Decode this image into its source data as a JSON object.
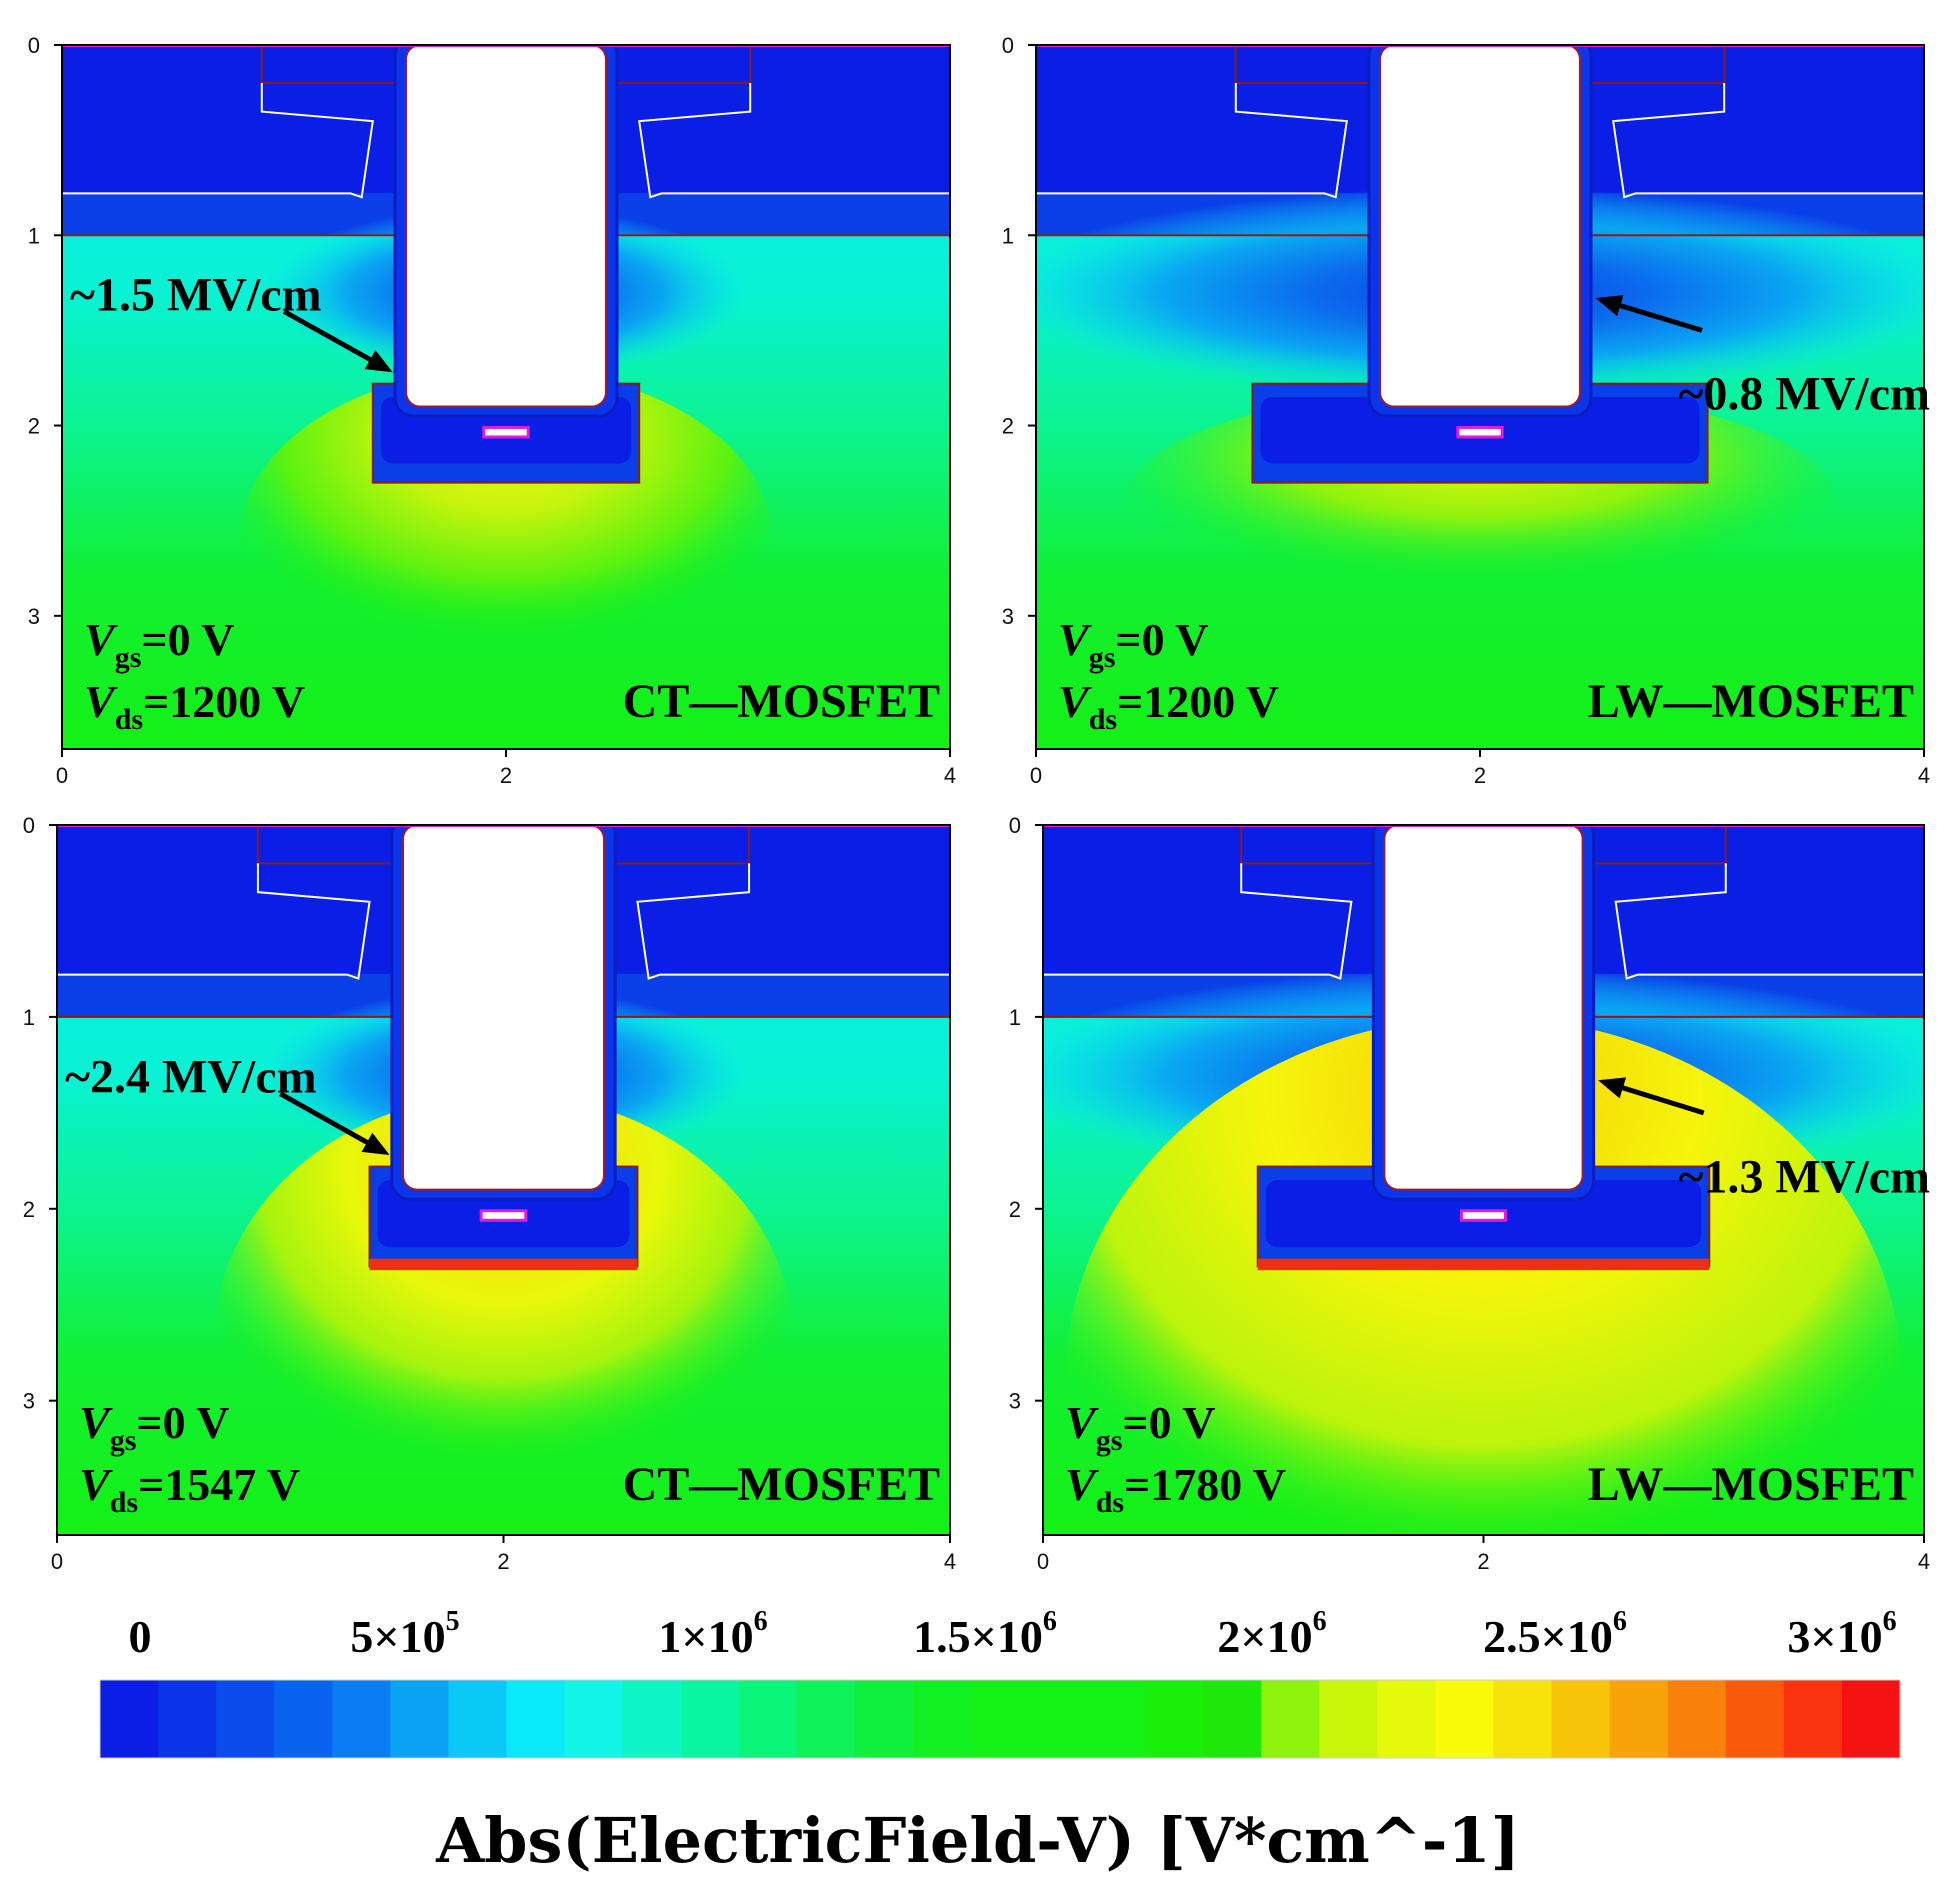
{
  "panels": [
    {
      "device": "CT—MOSFET",
      "vgs": {
        "sym": "V",
        "sub": "gs",
        "rest": "=0 V"
      },
      "vds": {
        "sym": "V",
        "sub": "ds",
        "rest": "=1200 V"
      },
      "annotation": "~1.5 MV/cm",
      "x_ticks": [
        "0",
        "2",
        "4"
      ],
      "y_ticks": [
        "0",
        "1",
        "2",
        "3"
      ]
    },
    {
      "device": "LW—MOSFET",
      "vgs": {
        "sym": "V",
        "sub": "gs",
        "rest": "=0 V"
      },
      "vds": {
        "sym": "V",
        "sub": "ds",
        "rest": "=1200 V"
      },
      "annotation": "~0.8 MV/cm",
      "x_ticks": [
        "0",
        "2",
        "4"
      ],
      "y_ticks": [
        "0",
        "1",
        "2",
        "3"
      ]
    },
    {
      "device": "CT—MOSFET",
      "vgs": {
        "sym": "V",
        "sub": "gs",
        "rest": "=0 V"
      },
      "vds": {
        "sym": "V",
        "sub": "ds",
        "rest": "=1547 V"
      },
      "annotation": "~2.4 MV/cm",
      "x_ticks": [
        "0",
        "2",
        "4"
      ],
      "y_ticks": [
        "0",
        "1",
        "2",
        "3"
      ]
    },
    {
      "device": "LW—MOSFET",
      "vgs": {
        "sym": "V",
        "sub": "gs",
        "rest": "=0 V"
      },
      "vds": {
        "sym": "V",
        "sub": "ds",
        "rest": "=1780 V"
      },
      "annotation": "~1.3 MV/cm",
      "x_ticks": [
        "0",
        "2",
        "4"
      ],
      "y_ticks": [
        "0",
        "1",
        "2",
        "3"
      ]
    }
  ],
  "colorbar": {
    "ticks": [
      {
        "base": "0",
        "exp": ""
      },
      {
        "base": "5×10",
        "exp": "5"
      },
      {
        "base": "1×10",
        "exp": "6"
      },
      {
        "base": "1.5×10",
        "exp": "6"
      },
      {
        "base": "2×10",
        "exp": "6"
      },
      {
        "base": "2.5×10",
        "exp": "6"
      },
      {
        "base": "3×10",
        "exp": "6"
      }
    ],
    "colors": [
      "#0a1ee6",
      "#0b33e8",
      "#0b4cec",
      "#0a63ef",
      "#0a7df2",
      "#0aa3f4",
      "#0ac9f6",
      "#0ae9f7",
      "#11f4e6",
      "#0ff5c6",
      "#0af5a2",
      "#0af57a",
      "#0ff25a",
      "#12f03f",
      "#12f022",
      "#15f015",
      "#15f015",
      "#15f015",
      "#1aef0a",
      "#1de80a",
      "#8ef20c",
      "#c8f70a",
      "#e6f90a",
      "#f9fb0a",
      "#f7e20a",
      "#f8c40a",
      "#f8a30a",
      "#f9800a",
      "#f95a0a",
      "#f83510",
      "#f41212"
    ],
    "title": "Abs(ElectricField-V)  [V*cm^-1]"
  }
}
